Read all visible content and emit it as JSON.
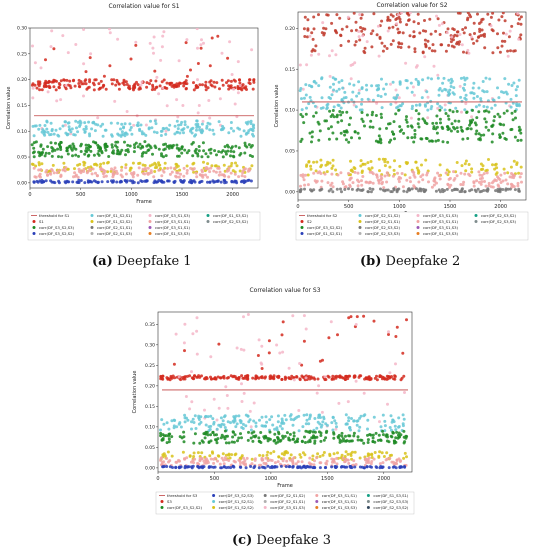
{
  "charts": [
    {
      "title": "Correlation value for S1",
      "caption_letter": "(a)",
      "caption_text": "Deepfake 1",
      "chart_data": {
        "type": "scatter",
        "title": "Correlation value for S1",
        "xlabel": "Frame",
        "ylabel": "Correlation value",
        "xlim": [
          0,
          2250
        ],
        "ylim": [
          -0.01,
          0.3
        ],
        "xticks": [
          0,
          500,
          1000,
          1500,
          2000
        ],
        "yticks": [
          0.0,
          0.05,
          0.1,
          0.15,
          0.2,
          0.25,
          0.3
        ],
        "threshold": {
          "name": "threshold for S1",
          "value": 0.13,
          "color": "#c04040"
        },
        "legend": [
          "threshold for S1",
          "S1",
          "corr(DF_S3_S2,S3)",
          "corr(DF_S3_S2,S2)",
          "corr(DF_S1_S2,S1)",
          "corr(DF_S1_S2,S2)",
          "corr(DF_S2_S1,S1)",
          "corr(DF_S2_S1,S3)",
          "corr(DF_S3_S1,S3)",
          "corr(DF_S3_S1,S1)",
          "corr(DF_S3_S1,S1)",
          "corr(DF_S1_S3,S3)",
          "corr(DF_S1_S3,S2)",
          "corr(DF_S2_S3,S2)"
        ],
        "legend_columns": 4,
        "series": [
          {
            "name": "S1 (upper)",
            "color": "#d32a1e",
            "y_band": [
              0.2,
              0.29
            ],
            "density": 0.08
          },
          {
            "name": "S1",
            "color": "#d32a1e",
            "y_band": [
              0.18,
              0.2
            ],
            "density": 1
          },
          {
            "name": "pink",
            "color": "#f4b6c8",
            "y_band": [
              0.09,
              0.3
            ],
            "density": 0.35
          },
          {
            "name": "cyan",
            "color": "#66c8d6",
            "y_band": [
              0.09,
              0.12
            ],
            "density": 0.9
          },
          {
            "name": "green",
            "color": "#1d8a23",
            "y_band": [
              0.05,
              0.08
            ],
            "density": 1
          },
          {
            "name": "yellow",
            "color": "#d8c21a",
            "y_band": [
              0.02,
              0.04
            ],
            "density": 0.5
          },
          {
            "name": "salmon",
            "color": "#f0a3a3",
            "y_band": [
              0.01,
              0.03
            ],
            "density": 0.7
          },
          {
            "name": "blue",
            "color": "#2a3fb8",
            "y_band": [
              0.0,
              0.005
            ],
            "density": 0.6
          }
        ]
      }
    },
    {
      "title": "Correlation value for S2",
      "caption_letter": "(b)",
      "caption_text": "Deepfake 2",
      "chart_data": {
        "type": "scatter",
        "title": "Correlation value for S2",
        "xlabel": "Frame",
        "ylabel": "Correlation value",
        "xlim": [
          0,
          2250
        ],
        "ylim": [
          -0.01,
          0.22
        ],
        "xticks": [
          0,
          500,
          1000,
          1500,
          2000
        ],
        "yticks": [
          0.0,
          0.05,
          0.1,
          0.15,
          0.2
        ],
        "threshold": {
          "name": "threshold for S2",
          "value": 0.11,
          "color": "#c04040"
        },
        "legend": [
          "threshold for S2",
          "S2",
          "corr(DF_S3_S2,S2)",
          "corr(DF_S1_S2,S1)",
          "corr(DF_S2_S1,S2)",
          "corr(DF_S2_S1,S1)",
          "corr(DF_S2_S3,S2)",
          "corr(DF_S2_S3,S3)",
          "corr(DF_S3_S1,S3)",
          "corr(DF_S3_S1,S1)",
          "corr(DF_S3_S1,S3)",
          "corr(DF_S1_S3,S3)",
          "corr(DF_S2_S3,S2)",
          "corr(DF_S2_S3,S3)"
        ],
        "legend_columns": 4,
        "series": [
          {
            "name": "S2",
            "color": "#c0392b",
            "y_band": [
              0.17,
              0.22
            ],
            "density": 1
          },
          {
            "name": "pink",
            "color": "#f4b6c8",
            "y_band": [
              0.09,
              0.22
            ],
            "density": 0.35
          },
          {
            "name": "cyan",
            "color": "#66c8d6",
            "y_band": [
              0.1,
              0.14
            ],
            "density": 1
          },
          {
            "name": "green",
            "color": "#1d8a23",
            "y_band": [
              0.06,
              0.1
            ],
            "density": 1
          },
          {
            "name": "yellow",
            "color": "#d8c21a",
            "y_band": [
              0.02,
              0.04
            ],
            "density": 0.5
          },
          {
            "name": "salmon",
            "color": "#f0a3a3",
            "y_band": [
              0.005,
              0.025
            ],
            "density": 0.8
          },
          {
            "name": "gray",
            "color": "#777777",
            "y_band": [
              0.0,
              0.004
            ],
            "density": 0.5
          }
        ]
      }
    },
    {
      "title": "Correlation value for S3",
      "caption_letter": "(c)",
      "caption_text": "Deepfake 3",
      "chart_data": {
        "type": "scatter",
        "title": "Correlation value for S3",
        "xlabel": "Frame",
        "ylabel": "Correlation value",
        "xlim": [
          0,
          2250
        ],
        "ylim": [
          -0.01,
          0.38
        ],
        "xticks": [
          0,
          500,
          1000,
          1500,
          2000
        ],
        "yticks": [
          0.0,
          0.05,
          0.1,
          0.15,
          0.2,
          0.25,
          0.3,
          0.35
        ],
        "threshold": {
          "name": "threshold for S3",
          "value": 0.19,
          "color": "#c04040"
        },
        "legend": [
          "threshold for S3",
          "S3",
          "corr(DF_S3_S2,S2)",
          "corr(DF_S3_S2,S3)",
          "corr(DF_S1_S2,S1)",
          "corr(DF_S1_S2,S2)",
          "corr(DF_S2_S1,S2)",
          "corr(DF_S2_S1,S1)",
          "corr(DF_S3_S1,S3)",
          "corr(DF_S3_S1,S1)",
          "corr(DF_S3_S1,S1)",
          "corr(DF_S1_S3,S3)",
          "corr(DF_S1_S3,S1)",
          "corr(DF_S2_S3,S3)",
          "corr(DF_S2_S3,S2)"
        ],
        "legend_columns": 5,
        "series": [
          {
            "name": "S3 (upper)",
            "color": "#d32a1e",
            "y_band": [
              0.24,
              0.37
            ],
            "density": 0.12
          },
          {
            "name": "S3",
            "color": "#d32a1e",
            "y_band": [
              0.215,
              0.225
            ],
            "density": 1
          },
          {
            "name": "pink",
            "color": "#f4b6c8",
            "y_band": [
              0.09,
              0.38
            ],
            "density": 0.3
          },
          {
            "name": "cyan",
            "color": "#66c8d6",
            "y_band": [
              0.09,
              0.13
            ],
            "density": 0.9
          },
          {
            "name": "green",
            "color": "#1d8a23",
            "y_band": [
              0.06,
              0.09
            ],
            "density": 1
          },
          {
            "name": "yellow",
            "color": "#d8c21a",
            "y_band": [
              0.02,
              0.04
            ],
            "density": 0.5
          },
          {
            "name": "salmon",
            "color": "#f0a3a3",
            "y_band": [
              0.005,
              0.025
            ],
            "density": 0.8
          },
          {
            "name": "blue",
            "color": "#2a3fb8",
            "y_band": [
              0.0,
              0.004
            ],
            "density": 0.6
          }
        ]
      }
    }
  ]
}
